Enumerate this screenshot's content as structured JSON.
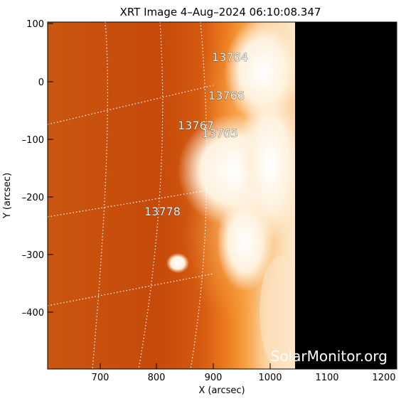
{
  "title": "XRT Image   4–Aug–2024 06:10:08.347",
  "x_axis": {
    "label": "X (arcsec)",
    "ticks": [
      "700",
      "800",
      "900",
      "1000",
      "1100",
      "1200"
    ]
  },
  "y_axis": {
    "label": "Y (arcsec)",
    "ticks": [
      "100",
      "0",
      "–100",
      "–200",
      "–300",
      "–400"
    ]
  },
  "active_regions": [
    "13764",
    "13766",
    "13767",
    "13765",
    "13778"
  ],
  "watermark": "SolarMonitor.org",
  "colors": {
    "disk_dark": "#c64a0a",
    "disk_mid": "#e8701a",
    "bright": "#fff2dc",
    "off_image": "#000000"
  }
}
